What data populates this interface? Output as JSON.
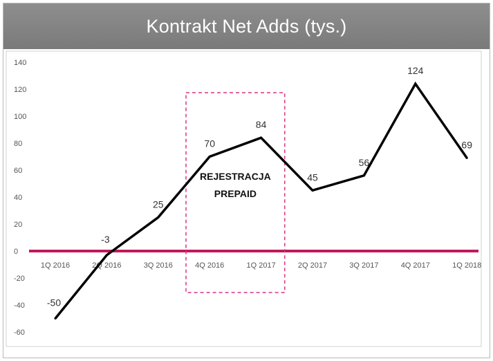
{
  "chart_data": {
    "type": "line",
    "title": "Kontrakt Net Adds (tys.)",
    "categories": [
      "1Q 2016",
      "2Q 2016",
      "3Q 2016",
      "4Q 2016",
      "1Q 2017",
      "2Q 2017",
      "3Q 2017",
      "4Q 2017",
      "1Q 2018"
    ],
    "series": [
      {
        "values": [
          -50,
          -3,
          25,
          70,
          84,
          45,
          56,
          124,
          69
        ]
      }
    ],
    "ylim": [
      -60,
      140
    ],
    "yticks": [
      140,
      120,
      100,
      80,
      60,
      40,
      20,
      0,
      -20,
      -40,
      -60
    ],
    "grid": false,
    "line_color": "#000000",
    "zero_line_color": "#c2185b",
    "highlight": {
      "label_line1": "REJESTRACJA",
      "label_line2": "PREPAID",
      "category_range": [
        "4Q 2016",
        "1Q 2017"
      ],
      "border_color": "#d63384"
    }
  }
}
